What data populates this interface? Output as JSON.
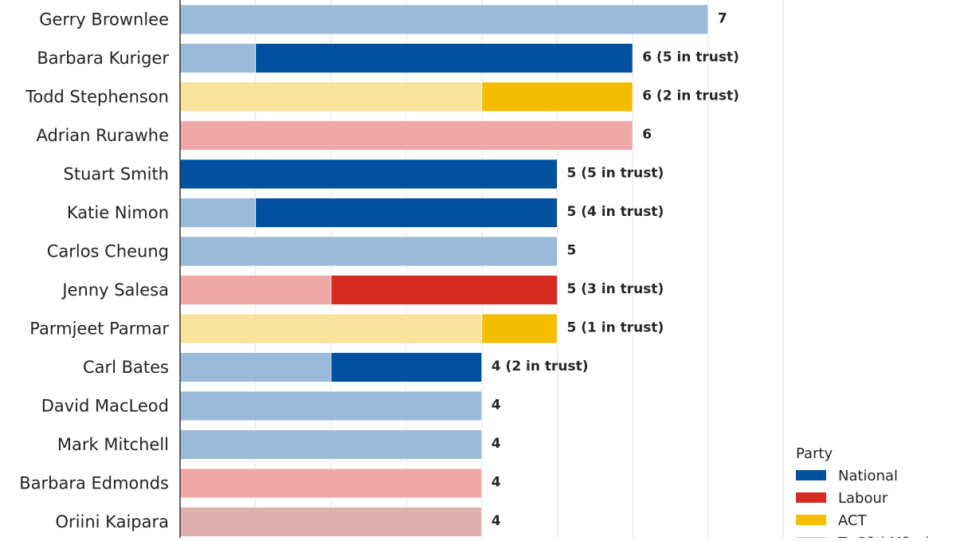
{
  "colors": {
    "National": "#0050a0",
    "National_light": "#9bbad9",
    "Labour": "#d62a22",
    "Labour_light": "#eea9a6",
    "ACT": "#f5bd00",
    "ACT_light": "#f9e39a",
    "TePatiMaori_light": "#e0b0ae",
    "grid": "#e3e3e3",
    "axis": "#333333"
  },
  "chart_data": {
    "type": "bar",
    "orientation": "horizontal",
    "stacked": true,
    "xlim": [
      0,
      8
    ],
    "grid": true,
    "legend_position": "bottom-right",
    "legend": {
      "title": "Party",
      "entries": [
        {
          "name": "National",
          "color": "#0050a0"
        },
        {
          "name": "Labour",
          "color": "#d62a22"
        },
        {
          "name": "ACT",
          "color": "#f5bd00"
        },
        {
          "name": "Te Pāti Māori",
          "color": "#e0b0ae"
        }
      ]
    },
    "categories": [
      "Gerry Brownlee",
      "Barbara Kuriger",
      "Todd Stephenson",
      "Adrian Rurawhe",
      "Stuart Smith",
      "Katie Nimon",
      "Carlos Cheung",
      "Jenny Salesa",
      "Parmjeet Parmar",
      "Carl Bates",
      "David MacLeod",
      "Mark Mitchell",
      "Barbara Edmonds",
      "Oriini Kaipara"
    ],
    "bars": [
      {
        "name": "Gerry Brownlee",
        "party": "National",
        "total": 7,
        "in_trust": 0,
        "label": "7"
      },
      {
        "name": "Barbara Kuriger",
        "party": "National",
        "total": 6,
        "in_trust": 5,
        "label": "6  (5 in trust)"
      },
      {
        "name": "Todd Stephenson",
        "party": "ACT",
        "total": 6,
        "in_trust": 2,
        "label": "6  (2 in trust)"
      },
      {
        "name": "Adrian Rurawhe",
        "party": "Labour",
        "total": 6,
        "in_trust": 0,
        "label": "6"
      },
      {
        "name": "Stuart Smith",
        "party": "National",
        "total": 5,
        "in_trust": 5,
        "label": "5  (5 in trust)"
      },
      {
        "name": "Katie Nimon",
        "party": "National",
        "total": 5,
        "in_trust": 4,
        "label": "5  (4 in trust)"
      },
      {
        "name": "Carlos Cheung",
        "party": "National",
        "total": 5,
        "in_trust": 0,
        "label": "5"
      },
      {
        "name": "Jenny Salesa",
        "party": "Labour",
        "total": 5,
        "in_trust": 3,
        "label": "5  (3 in trust)"
      },
      {
        "name": "Parmjeet Parmar",
        "party": "ACT",
        "total": 5,
        "in_trust": 1,
        "label": "5  (1 in trust)"
      },
      {
        "name": "Carl Bates",
        "party": "National",
        "total": 4,
        "in_trust": 2,
        "label": "4  (2 in trust)"
      },
      {
        "name": "David MacLeod",
        "party": "National",
        "total": 4,
        "in_trust": 0,
        "label": "4"
      },
      {
        "name": "Mark Mitchell",
        "party": "National",
        "total": 4,
        "in_trust": 0,
        "label": "4"
      },
      {
        "name": "Barbara Edmonds",
        "party": "Labour",
        "total": 4,
        "in_trust": 0,
        "label": "4"
      },
      {
        "name": "Oriini Kaipara",
        "party": "TePatiMaori",
        "total": 4,
        "in_trust": 0,
        "label": "4"
      }
    ]
  }
}
